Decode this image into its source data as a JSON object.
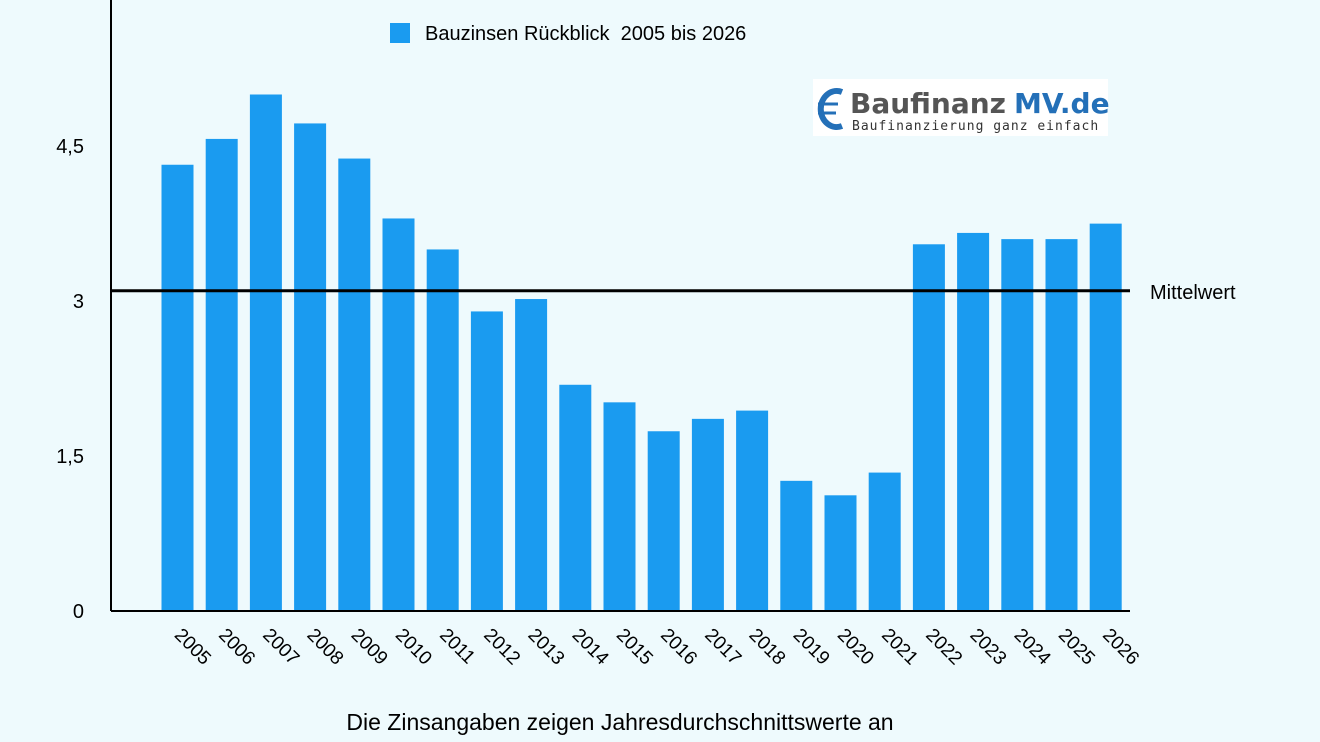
{
  "chart_data": {
    "type": "bar",
    "categories": [
      "2005",
      "2006",
      "2007",
      "2008",
      "2009",
      "2010",
      "2011",
      "2012",
      "2013",
      "2014",
      "2015",
      "2016",
      "2017",
      "2018",
      "2019",
      "2020",
      "2021",
      "2022",
      "2023",
      "2024",
      "2025",
      "2026"
    ],
    "series": [
      {
        "name": "Bauzinsen Rückblick  2005 bis 2026",
        "color": "#1a9bf0",
        "values": [
          4.32,
          4.57,
          5.0,
          4.72,
          4.38,
          3.8,
          3.5,
          2.9,
          3.02,
          2.19,
          2.02,
          1.74,
          1.86,
          1.94,
          1.26,
          1.12,
          1.34,
          3.55,
          3.66,
          3.6,
          3.6,
          3.75
        ]
      }
    ],
    "reference_line": {
      "label": "Mittelwert",
      "value": 3.1
    },
    "y_ticks": [
      "0",
      "1,5",
      "3",
      "4,5"
    ],
    "y_tick_values": [
      0,
      1.5,
      3,
      4.5
    ],
    "ylim": [
      0,
      6
    ],
    "grid": false,
    "legend_position": "top-center",
    "caption": "Die Zinsangaben zeigen Jahresdurchschnittswerte an"
  },
  "logo": {
    "brand": "Baufinanz",
    "brand_accent": "MV.de",
    "tagline": "Baufinanzierung ganz einfach",
    "icon": "euro-icon",
    "accent_color": "#2470b8"
  }
}
